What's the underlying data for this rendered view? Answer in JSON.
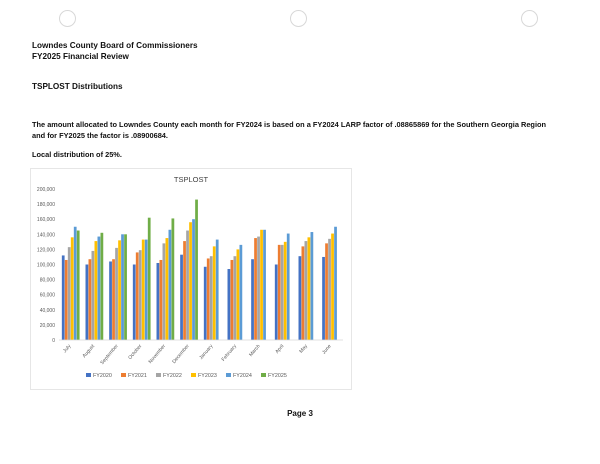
{
  "header": {
    "line1": "Lowndes County Board of Commissioners",
    "line2": "FY2025 Financial Review"
  },
  "section_title": "TSPLOST Distributions",
  "paragraph": "The amount allocated to Lowndes County each month for FY2024 is based on a FY2024 LARP factor of .08865869 for the Southern Georgia Region and for FY2025 the factor is .08900684.",
  "local_distribution": "Local distribution of 25%.",
  "page_label": "Page 3",
  "chart_data": {
    "type": "bar",
    "title": "TSPLOST",
    "xlabel": "",
    "ylabel": "",
    "ylim": [
      0,
      200000
    ],
    "yticks": [
      "0",
      "20,000",
      "40,000",
      "60,000",
      "80,000",
      "100,000",
      "120,000",
      "140,000",
      "160,000",
      "180,000",
      "200,000"
    ],
    "grid": false,
    "legend_position": "bottom",
    "categories": [
      "July",
      "August",
      "September",
      "October",
      "November",
      "December",
      "January",
      "February",
      "March",
      "April",
      "May",
      "June"
    ],
    "series": [
      {
        "name": "FY2020",
        "color": "#4472c4",
        "values": [
          112000,
          100000,
          104000,
          100000,
          102000,
          113000,
          97000,
          94000,
          107000,
          100000,
          111000,
          110000
        ]
      },
      {
        "name": "FY2021",
        "color": "#ed7d31",
        "values": [
          106000,
          107000,
          107000,
          116000,
          106000,
          131000,
          108000,
          106000,
          135000,
          126000,
          124000,
          128000
        ]
      },
      {
        "name": "FY2022",
        "color": "#a5a5a5",
        "values": [
          123000,
          118000,
          122000,
          119000,
          128000,
          145000,
          111000,
          111000,
          137000,
          126000,
          131000,
          134000
        ]
      },
      {
        "name": "FY2023",
        "color": "#ffc000",
        "values": [
          136000,
          131000,
          132000,
          133000,
          135000,
          156000,
          124000,
          120000,
          146000,
          130000,
          136000,
          141000
        ]
      },
      {
        "name": "FY2024",
        "color": "#5b9bd5",
        "values": [
          150000,
          137000,
          140000,
          133000,
          146000,
          160000,
          133000,
          126000,
          146000,
          141000,
          143000,
          150000
        ]
      },
      {
        "name": "FY2025",
        "color": "#70ad47",
        "values": [
          145000,
          142000,
          140000,
          162000,
          161000,
          186000,
          null,
          null,
          null,
          null,
          null,
          null
        ]
      }
    ]
  }
}
